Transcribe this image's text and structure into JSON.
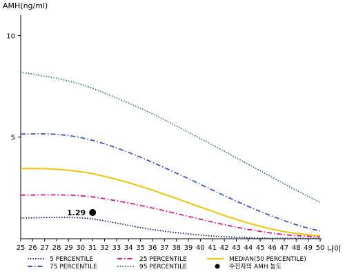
{
  "chart_data": {
    "type": "line",
    "ylabel": "AMH(ng/ml)",
    "xlabel": "나이",
    "x": [
      25,
      26,
      27,
      28,
      29,
      30,
      31,
      32,
      33,
      34,
      35,
      36,
      37,
      38,
      39,
      40,
      41,
      42,
      43,
      44,
      45,
      46,
      47,
      48,
      49,
      50
    ],
    "xlim": [
      25,
      50
    ],
    "ylim": [
      0,
      11
    ],
    "yticks": [
      5,
      10
    ],
    "grid": false,
    "legend_position": "bottom",
    "series": [
      {
        "name": "5 PERCENTILE",
        "style": "dotted",
        "color": "#0a1a6e",
        "values": [
          1.02,
          1.03,
          1.04,
          1.05,
          1.05,
          1.03,
          0.98,
          0.88,
          0.77,
          0.66,
          0.55,
          0.45,
          0.37,
          0.3,
          0.24,
          0.18,
          0.13,
          0.1,
          0.07,
          0.05,
          0.03,
          0.02,
          0.02,
          0.02,
          0.02,
          0.02
        ]
      },
      {
        "name": "25 PERCENTILE",
        "style": "dashdot",
        "color": "#e0148c",
        "values": [
          2.15,
          2.15,
          2.16,
          2.16,
          2.15,
          2.12,
          2.06,
          1.97,
          1.87,
          1.76,
          1.64,
          1.51,
          1.38,
          1.24,
          1.1,
          0.96,
          0.82,
          0.69,
          0.57,
          0.46,
          0.36,
          0.27,
          0.2,
          0.15,
          0.12,
          0.1
        ]
      },
      {
        "name": "MEDIAN(50 PERCENTILE)",
        "style": "solid",
        "color": "#f2c500",
        "values": [
          3.45,
          3.46,
          3.45,
          3.42,
          3.37,
          3.3,
          3.2,
          3.07,
          2.92,
          2.76,
          2.58,
          2.39,
          2.19,
          1.98,
          1.77,
          1.56,
          1.35,
          1.14,
          0.95,
          0.77,
          0.61,
          0.47,
          0.35,
          0.26,
          0.19,
          0.15
        ]
      },
      {
        "name": "75 PERCENTILE",
        "style": "dashdot",
        "color": "#3a55c8",
        "values": [
          5.15,
          5.16,
          5.16,
          5.14,
          5.08,
          4.98,
          4.84,
          4.67,
          4.47,
          4.25,
          4.01,
          3.76,
          3.5,
          3.23,
          2.96,
          2.68,
          2.4,
          2.12,
          1.85,
          1.59,
          1.34,
          1.11,
          0.89,
          0.69,
          0.52,
          0.38
        ]
      },
      {
        "name": "95 PERCENTILE",
        "style": "dotted",
        "color": "#2e7d4a",
        "values": [
          8.2,
          8.1,
          8.0,
          7.9,
          7.76,
          7.6,
          7.4,
          7.17,
          6.93,
          6.68,
          6.42,
          6.14,
          5.85,
          5.55,
          5.24,
          4.93,
          4.62,
          4.3,
          3.98,
          3.66,
          3.34,
          3.02,
          2.7,
          2.39,
          2.08,
          1.79
        ]
      }
    ],
    "marker": {
      "name": "수진자의 AMH 농도",
      "x": 31,
      "y": 1.29,
      "label": "1.29"
    }
  }
}
